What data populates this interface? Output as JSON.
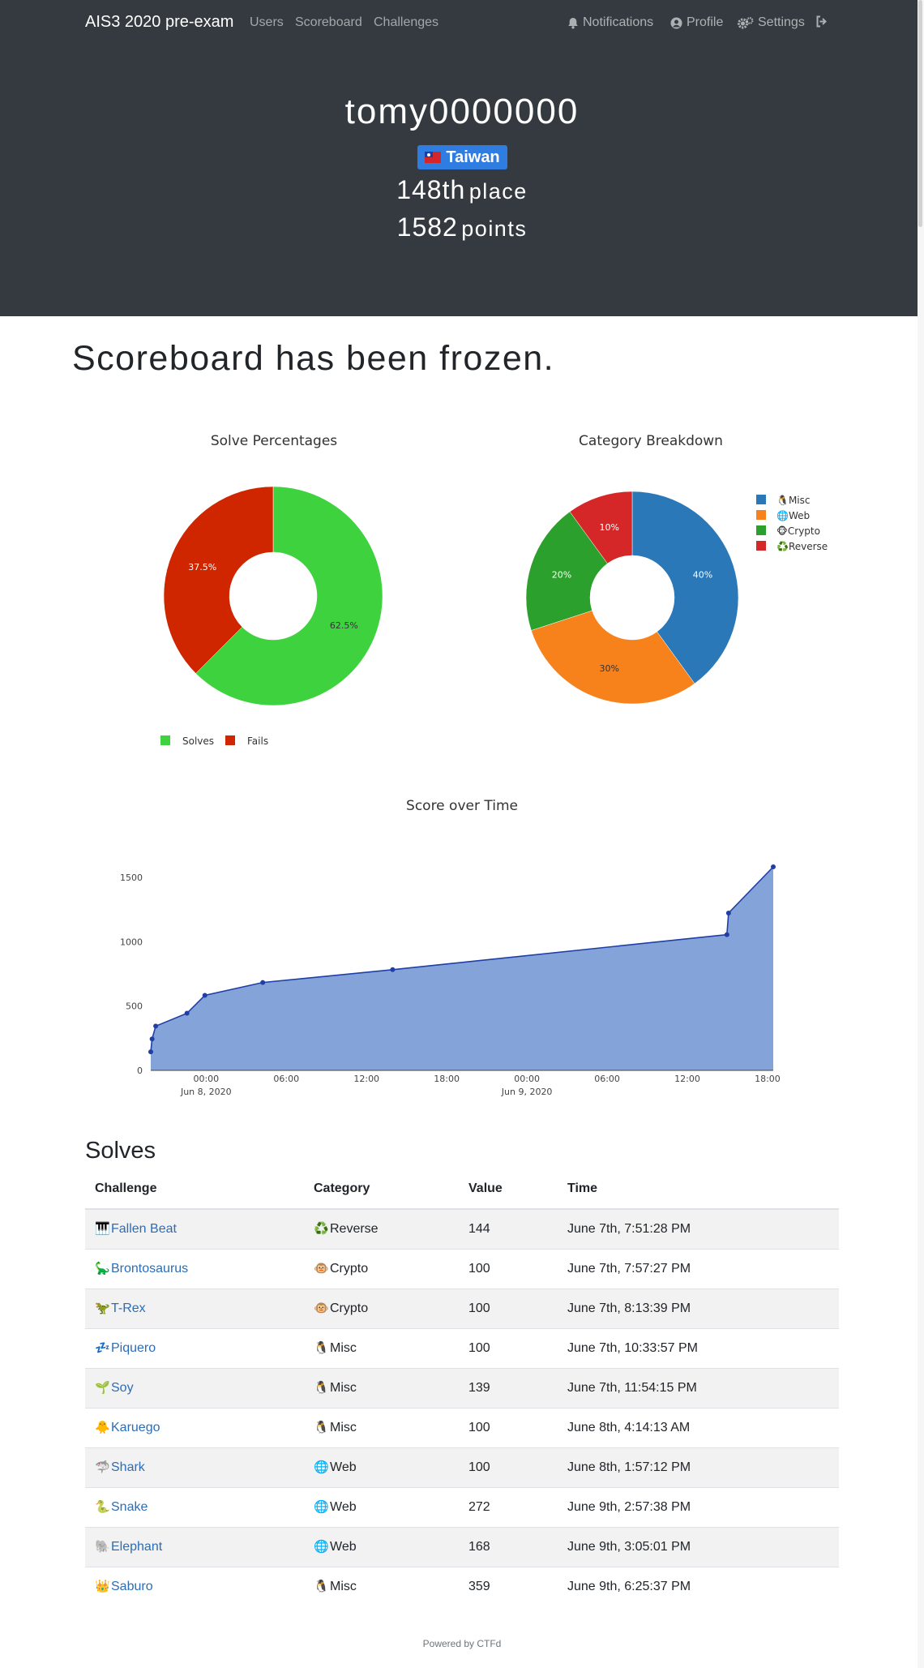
{
  "navbar": {
    "brand": "AIS3 2020 pre-exam",
    "links": [
      "Users",
      "Scoreboard",
      "Challenges"
    ],
    "notifications": "Notifications",
    "profile": "Profile",
    "settings": "Settings"
  },
  "team": {
    "name": "tomy0000000",
    "country": "Taiwan",
    "place_num": "148th",
    "place_unit": "place",
    "points_num": "1582",
    "points_unit": "points"
  },
  "frozen_notice": "Scoreboard has been frozen.",
  "chart_data": [
    {
      "type": "pie",
      "title": "Solve Percentages",
      "labels": [
        "Solves",
        "Fails"
      ],
      "values": [
        62.5,
        37.5
      ],
      "value_labels": [
        "62.5%",
        "37.5%"
      ],
      "colors": [
        "#3ed23e",
        "#cf2600"
      ],
      "hole": true,
      "legend": "bottom"
    },
    {
      "type": "pie",
      "title": "Category Breakdown",
      "labels": [
        "Misc",
        "Web",
        "Crypto",
        "Reverse"
      ],
      "values": [
        40,
        30,
        20,
        10
      ],
      "value_labels": [
        "40%",
        "30%",
        "20%",
        "10%"
      ],
      "colors": [
        "#2a78b8",
        "#f7811a",
        "#2ca02c",
        "#d62728"
      ],
      "legend_icons": [
        "🐧",
        "🌐",
        "🐵",
        "♻️"
      ],
      "hole": true,
      "legend": "top-right"
    },
    {
      "type": "area",
      "title": "Score over Time",
      "x_tick_labels": [
        "00:00",
        "06:00",
        "12:00",
        "18:00",
        "00:00",
        "06:00",
        "12:00",
        "18:00"
      ],
      "x_date_labels": [
        "Jun 8, 2020",
        "Jun 9, 2020"
      ],
      "y_ticks": [
        0,
        500,
        1000,
        1500
      ],
      "x": [
        "2020-06-07 19:51:28",
        "2020-06-07 19:57:27",
        "2020-06-07 20:13:39",
        "2020-06-07 22:33:57",
        "2020-06-07 23:54:15",
        "2020-06-08 04:14:13",
        "2020-06-08 13:57:12",
        "2020-06-09 14:57:38",
        "2020-06-09 15:05:01",
        "2020-06-09 18:25:37"
      ],
      "y": [
        144,
        244,
        344,
        444,
        583,
        683,
        783,
        1055,
        1223,
        1582
      ],
      "ylim": [
        0,
        1582
      ],
      "fill_color": "#84a3d9",
      "line_color": "#1f3fa6",
      "grid": false
    }
  ],
  "solves": {
    "heading": "Solves",
    "columns": [
      "Challenge",
      "Category",
      "Value",
      "Time"
    ],
    "rows": [
      {
        "icon": "🎹",
        "challenge": "Fallen Beat",
        "cat_icon": "♻️",
        "category": "Reverse",
        "value": "144",
        "time": "June 7th, 7:51:28 PM"
      },
      {
        "icon": "🦕",
        "challenge": "Brontosaurus",
        "cat_icon": "🐵",
        "category": "Crypto",
        "value": "100",
        "time": "June 7th, 7:57:27 PM"
      },
      {
        "icon": "🦖",
        "challenge": "T-Rex",
        "cat_icon": "🐵",
        "category": "Crypto",
        "value": "100",
        "time": "June 7th, 8:13:39 PM"
      },
      {
        "icon": "💤",
        "challenge": "Piquero",
        "cat_icon": "🐧",
        "category": "Misc",
        "value": "100",
        "time": "June 7th, 10:33:57 PM"
      },
      {
        "icon": "🌱",
        "challenge": "Soy",
        "cat_icon": "🐧",
        "category": "Misc",
        "value": "139",
        "time": "June 7th, 11:54:15 PM"
      },
      {
        "icon": "🐥",
        "challenge": "Karuego",
        "cat_icon": "🐧",
        "category": "Misc",
        "value": "100",
        "time": "June 8th, 4:14:13 AM"
      },
      {
        "icon": "🦈",
        "challenge": "Shark",
        "cat_icon": "🌐",
        "category": "Web",
        "value": "100",
        "time": "June 8th, 1:57:12 PM"
      },
      {
        "icon": "🐍",
        "challenge": "Snake",
        "cat_icon": "🌐",
        "category": "Web",
        "value": "272",
        "time": "June 9th, 2:57:38 PM"
      },
      {
        "icon": "🐘",
        "challenge": "Elephant",
        "cat_icon": "🌐",
        "category": "Web",
        "value": "168",
        "time": "June 9th, 3:05:01 PM"
      },
      {
        "icon": "👑",
        "challenge": "Saburo",
        "cat_icon": "🐧",
        "category": "Misc",
        "value": "359",
        "time": "June 9th, 6:25:37 PM"
      }
    ]
  },
  "footer": "Powered by CTFd"
}
